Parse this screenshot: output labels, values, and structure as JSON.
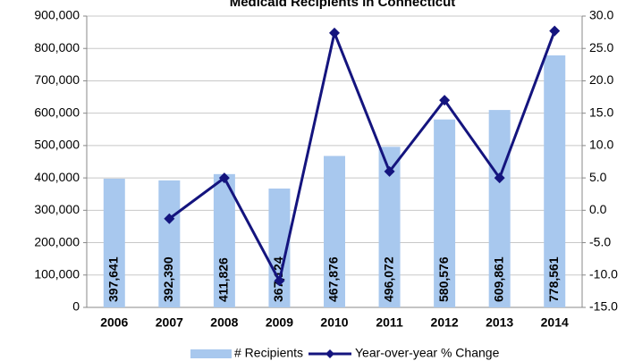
{
  "chart_data": {
    "type": "bar-line",
    "title": "Medicaid Recipients in Connecticut",
    "categories": [
      "2006",
      "2007",
      "2008",
      "2009",
      "2010",
      "2011",
      "2012",
      "2013",
      "2014"
    ],
    "series": [
      {
        "name": "# Recipients",
        "type": "bar",
        "color": "#a8c8ee",
        "values": [
          397641,
          392390,
          411826,
          367124,
          467876,
          496072,
          580576,
          609861,
          778561
        ],
        "value_labels": [
          "397,641",
          "392,390",
          "411,826",
          "367,124",
          "467,876",
          "496,072",
          "580,576",
          "609,861",
          "778,561"
        ]
      },
      {
        "name": "Year-over-year % Change",
        "type": "line",
        "axis": "y2",
        "color": "#14147e",
        "values": [
          null,
          -1.3,
          5.0,
          -10.9,
          27.4,
          6.0,
          17.0,
          5.0,
          27.7
        ]
      }
    ],
    "ylim": [
      0,
      900000
    ],
    "yticks": [
      0,
      {
        "value": 100000,
        "label": "100,000"
      },
      {
        "value": 200000,
        "label": "200,000"
      },
      {
        "value": 300000,
        "label": "300,000"
      },
      {
        "value": 400000,
        "label": "400,000"
      },
      {
        "value": 500000,
        "label": "500,000"
      },
      {
        "value": 600000,
        "label": "600,000"
      },
      {
        "value": 700000,
        "label": "700,000"
      },
      {
        "value": 800000,
        "label": "800,000"
      },
      {
        "value": 900000,
        "label": "900,000"
      }
    ],
    "y2lim": [
      -15,
      30
    ],
    "y2ticks": [
      {
        "value": -15,
        "label": "-15.0"
      },
      {
        "value": -10,
        "label": "-10.0"
      },
      {
        "value": -5,
        "label": "-5.0"
      },
      {
        "value": 0,
        "label": "0.0"
      },
      {
        "value": 5,
        "label": "5.0"
      },
      {
        "value": 10,
        "label": "10.0"
      },
      {
        "value": 15,
        "label": "15.0"
      },
      {
        "value": 20,
        "label": "20.0"
      },
      {
        "value": 25,
        "label": "25.0"
      },
      {
        "value": 30,
        "label": "30.0"
      }
    ],
    "grid": true,
    "legend": "bottom"
  }
}
